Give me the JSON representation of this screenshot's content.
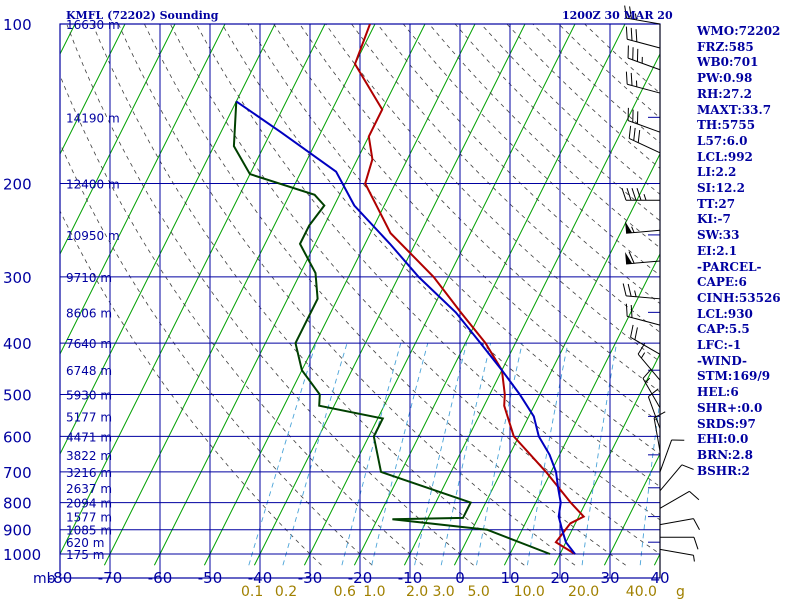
{
  "header": {
    "station": "KMFL (72202) Sounding",
    "time": "1200Z 30 MAR 20"
  },
  "indices": [
    "WMO:72202",
    "FRZ:585",
    "WB0:701",
    "PW:0.98",
    "RH:27.2",
    "MAXT:33.7",
    "TH:5755",
    "L57:6.0",
    "LCL:992",
    "LI:2.2",
    "SI:12.2",
    "TT:27",
    "KI:-7",
    "SW:33",
    "EI:2.1",
    "-PARCEL-",
    "CAPE:6",
    "CINH:53526",
    "LCL:930",
    "CAP:5.5",
    "LFC:-1",
    "-WIND-",
    "STM:169/9",
    "HEL:6",
    "SHR+:0.0",
    "SRDS:97",
    "EHI:0.0",
    "BRN:2.8",
    "BSHR:2"
  ],
  "colors": {
    "grid": "#0000a0",
    "isotherm": "#00a000",
    "dry_adiabat": "#404040",
    "mixing_ratio": "#4aa3d8",
    "temperature": "#b00000",
    "dewpoint": "#004000",
    "parcel": "#0000c0",
    "wind": "#000000",
    "label": "#0000a0",
    "mixing_label": "#a08000"
  },
  "chart_data": {
    "type": "line",
    "title": "KMFL (72202) Sounding",
    "xlabel": "",
    "ylabel": "mb",
    "x_unit_label": "mb",
    "xlim": [
      -80,
      40
    ],
    "ylim": [
      1000,
      100
    ],
    "y_scale": "log",
    "grid": true,
    "x_ticks": [
      -80,
      -70,
      -60,
      -50,
      -40,
      -30,
      -20,
      -10,
      0,
      10,
      20,
      30,
      40
    ],
    "x_tick_labels": [
      "-80",
      "-70",
      "-60",
      "-50",
      "-40",
      "-30",
      "-20",
      "-10",
      "0",
      "10",
      "20",
      "30",
      "40"
    ],
    "pressure_ticks": [
      100,
      200,
      300,
      400,
      500,
      600,
      700,
      800,
      900,
      1000
    ],
    "height_labels": [
      {
        "p": 100,
        "label": "16630 m"
      },
      {
        "p": 150,
        "label": "14190 m"
      },
      {
        "p": 200,
        "label": "12400 m"
      },
      {
        "p": 250,
        "label": "10950 m"
      },
      {
        "p": 300,
        "label": "9710 m"
      },
      {
        "p": 350,
        "label": "8606 m"
      },
      {
        "p": 400,
        "label": "7640 m"
      },
      {
        "p": 450,
        "label": "6748 m"
      },
      {
        "p": 500,
        "label": "5930 m"
      },
      {
        "p": 550,
        "label": "5177 m"
      },
      {
        "p": 600,
        "label": "4471 m"
      },
      {
        "p": 650,
        "label": "3822 m"
      },
      {
        "p": 700,
        "label": "3216 m"
      },
      {
        "p": 750,
        "label": "2637 m"
      },
      {
        "p": 800,
        "label": "2094 m"
      },
      {
        "p": 850,
        "label": "1577 m"
      },
      {
        "p": 900,
        "label": "1085 m"
      },
      {
        "p": 950,
        "label": "620 m"
      },
      {
        "p": 1000,
        "label": "175 m"
      }
    ],
    "mixing_ratio_labels": [
      {
        "w": 0.1,
        "label": "0.1"
      },
      {
        "w": 0.2,
        "label": "0.2"
      },
      {
        "w": 0.6,
        "label": "0.6"
      },
      {
        "w": 1.0,
        "label": "1.0"
      },
      {
        "w": 2.0,
        "label": "2.0"
      },
      {
        "w": 3.0,
        "label": "3.0"
      },
      {
        "w": 5.0,
        "label": "5.0"
      },
      {
        "w": 10.0,
        "label": "10.0"
      },
      {
        "w": 20.0,
        "label": "20.0"
      },
      {
        "w": 40.0,
        "label": "40.0"
      }
    ],
    "mixing_ratio_unit": "g",
    "series": [
      {
        "id": "temperature",
        "points": [
          [
            100,
            -71
          ],
          [
            119,
            -70
          ],
          [
            145,
            -60
          ],
          [
            163,
            -60
          ],
          [
            180,
            -57
          ],
          [
            200,
            -56
          ],
          [
            248,
            -46
          ],
          [
            300,
            -33
          ],
          [
            350,
            -24
          ],
          [
            400,
            -16
          ],
          [
            450,
            -10
          ],
          [
            500,
            -7
          ],
          [
            525,
            -6
          ],
          [
            600,
            -1
          ],
          [
            700,
            9
          ],
          [
            800,
            17
          ],
          [
            850,
            21
          ],
          [
            875,
            19
          ],
          [
            950,
            18
          ],
          [
            1000,
            23
          ]
        ]
      },
      {
        "id": "dewpoint",
        "points": [
          [
            140,
            -90
          ],
          [
            170,
            -86
          ],
          [
            192,
            -80
          ],
          [
            210,
            -65
          ],
          [
            220,
            -62
          ],
          [
            240,
            -63
          ],
          [
            260,
            -63
          ],
          [
            295,
            -57
          ],
          [
            330,
            -54
          ],
          [
            400,
            -54
          ],
          [
            450,
            -50
          ],
          [
            500,
            -44
          ],
          [
            525,
            -43
          ],
          [
            555,
            -29
          ],
          [
            600,
            -29
          ],
          [
            700,
            -24
          ],
          [
            800,
            -3
          ],
          [
            830,
            -3
          ],
          [
            855,
            -3
          ],
          [
            860,
            -17
          ],
          [
            900,
            3
          ],
          [
            1000,
            18
          ]
        ]
      },
      {
        "id": "parcel",
        "points": [
          [
            140,
            -90
          ],
          [
            160,
            -78
          ],
          [
            190,
            -63
          ],
          [
            220,
            -56
          ],
          [
            260,
            -45
          ],
          [
            300,
            -36
          ],
          [
            350,
            -25
          ],
          [
            400,
            -17
          ],
          [
            450,
            -10
          ],
          [
            500,
            -4
          ],
          [
            550,
            1
          ],
          [
            600,
            4
          ],
          [
            650,
            8
          ],
          [
            700,
            11
          ],
          [
            750,
            13
          ],
          [
            800,
            15
          ],
          [
            850,
            16
          ],
          [
            900,
            18
          ],
          [
            950,
            20
          ],
          [
            1000,
            23
          ]
        ]
      }
    ],
    "winds": [
      {
        "p": 100,
        "dir": 280,
        "spd": 25
      },
      {
        "p": 111,
        "dir": 285,
        "spd": 30
      },
      {
        "p": 122,
        "dir": 290,
        "spd": 35
      },
      {
        "p": 135,
        "dir": 285,
        "spd": 25
      },
      {
        "p": 160,
        "dir": 290,
        "spd": 30
      },
      {
        "p": 175,
        "dir": 295,
        "spd": 30
      },
      {
        "p": 215,
        "dir": 270,
        "spd": 45
      },
      {
        "p": 245,
        "dir": 265,
        "spd": 55
      },
      {
        "p": 280,
        "dir": 265,
        "spd": 60
      },
      {
        "p": 330,
        "dir": 275,
        "spd": 25
      },
      {
        "p": 370,
        "dir": 285,
        "spd": 20
      },
      {
        "p": 420,
        "dir": 300,
        "spd": 20
      },
      {
        "p": 470,
        "dir": 320,
        "spd": 15
      },
      {
        "p": 530,
        "dir": 330,
        "spd": 15
      },
      {
        "p": 580,
        "dir": 340,
        "spd": 10
      },
      {
        "p": 640,
        "dir": 350,
        "spd": 10
      },
      {
        "p": 700,
        "dir": 20,
        "spd": 10
      },
      {
        "p": 760,
        "dir": 40,
        "spd": 10
      },
      {
        "p": 820,
        "dir": 60,
        "spd": 10
      },
      {
        "p": 880,
        "dir": 80,
        "spd": 10
      },
      {
        "p": 930,
        "dir": 90,
        "spd": 10
      },
      {
        "p": 980,
        "dir": 100,
        "spd": 5
      }
    ]
  }
}
